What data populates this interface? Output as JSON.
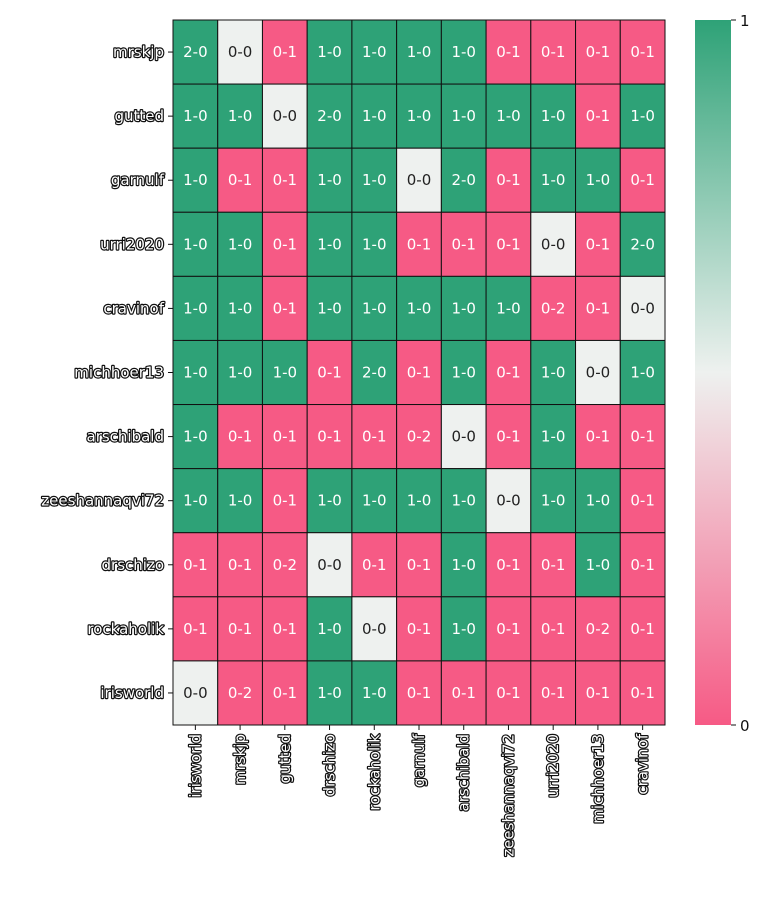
{
  "chart_data": {
    "type": "heatmap",
    "title": "",
    "xlabel": "",
    "ylabel": "",
    "row_labels": [
      "mrskjp",
      "gutted",
      "garnulf",
      "urri2020",
      "cravinof",
      "michhoer13",
      "arschibald",
      "zeeshannaqvi72",
      "drschizo",
      "rockaholik",
      "irisworld"
    ],
    "col_labels": [
      "irisworld",
      "mrskjp",
      "gutted",
      "drschizo",
      "rockaholik",
      "garnulf",
      "arschibald",
      "zeeshannaqvi72",
      "urri2020",
      "michhoer13",
      "cravinof"
    ],
    "annotations": [
      [
        "2-0",
        "0-0",
        "0-1",
        "1-0",
        "1-0",
        "1-0",
        "1-0",
        "0-1",
        "0-1",
        "0-1",
        "0-1"
      ],
      [
        "1-0",
        "1-0",
        "0-0",
        "2-0",
        "1-0",
        "1-0",
        "1-0",
        "1-0",
        "1-0",
        "0-1",
        "1-0"
      ],
      [
        "1-0",
        "0-1",
        "0-1",
        "1-0",
        "1-0",
        "0-0",
        "2-0",
        "0-1",
        "1-0",
        "1-0",
        "0-1"
      ],
      [
        "1-0",
        "1-0",
        "0-1",
        "1-0",
        "1-0",
        "0-1",
        "0-1",
        "0-1",
        "0-0",
        "0-1",
        "2-0"
      ],
      [
        "1-0",
        "1-0",
        "0-1",
        "1-0",
        "1-0",
        "1-0",
        "1-0",
        "1-0",
        "0-2",
        "0-1",
        "0-0"
      ],
      [
        "1-0",
        "1-0",
        "1-0",
        "0-1",
        "2-0",
        "0-1",
        "1-0",
        "0-1",
        "1-0",
        "0-0",
        "1-0"
      ],
      [
        "1-0",
        "0-1",
        "0-1",
        "0-1",
        "0-1",
        "0-2",
        "0-0",
        "0-1",
        "1-0",
        "0-1",
        "0-1"
      ],
      [
        "1-0",
        "1-0",
        "0-1",
        "1-0",
        "1-0",
        "1-0",
        "1-0",
        "0-0",
        "1-0",
        "1-0",
        "0-1"
      ],
      [
        "0-1",
        "0-1",
        "0-2",
        "0-0",
        "0-1",
        "0-1",
        "1-0",
        "0-1",
        "0-1",
        "1-0",
        "0-1"
      ],
      [
        "0-1",
        "0-1",
        "0-1",
        "1-0",
        "0-0",
        "0-1",
        "1-0",
        "0-1",
        "0-1",
        "0-2",
        "0-1"
      ],
      [
        "0-0",
        "0-2",
        "0-1",
        "1-0",
        "1-0",
        "0-1",
        "0-1",
        "0-1",
        "0-1",
        "0-1",
        "0-1"
      ]
    ],
    "colorbar": {
      "min": 0,
      "max": 1,
      "ticks": [
        "0",
        "1"
      ]
    },
    "colors": {
      "high": "#2ea277",
      "mid": "#eef1ef",
      "low": "#f65a85"
    }
  }
}
